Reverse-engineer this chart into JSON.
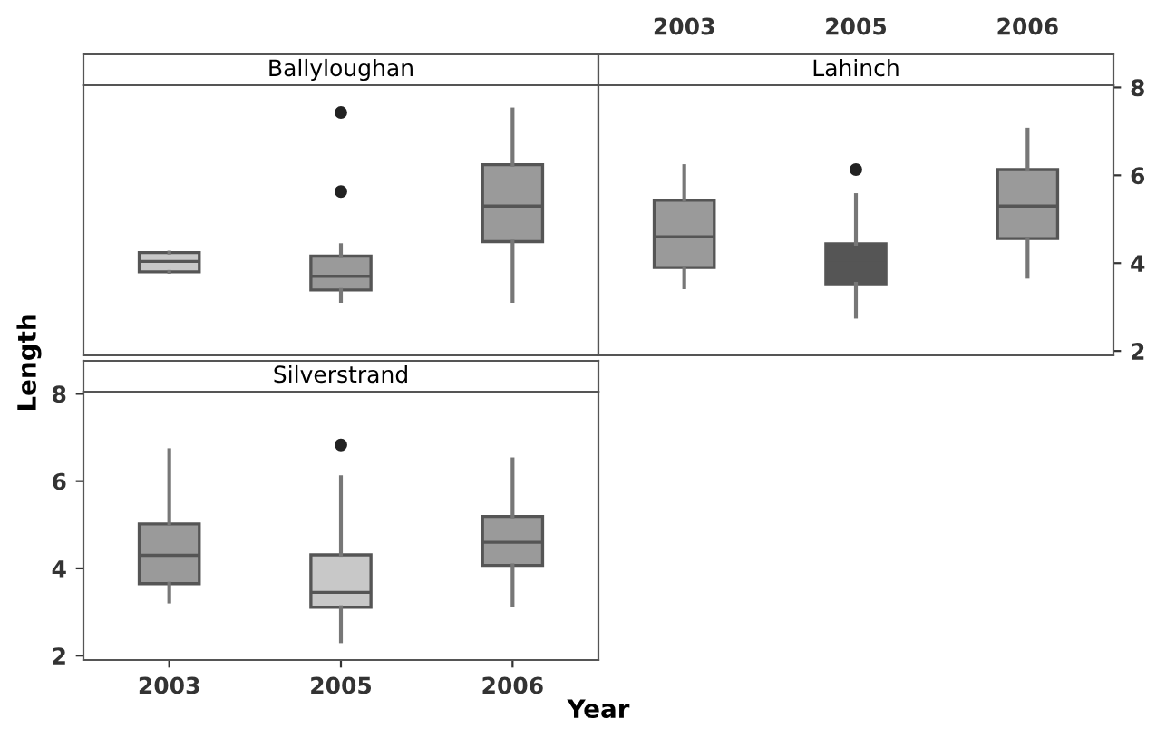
{
  "chart_data": [
    {
      "type": "box",
      "title": "Ballyloughan",
      "categories": [
        "2003",
        "2005",
        "2006"
      ],
      "ylim": [
        1.9,
        8.05
      ],
      "yticks": [
        2,
        4,
        6,
        8
      ],
      "tick_labels": false,
      "grid": false,
      "legend": false,
      "colors": [
        "#c8c8c8",
        "#9a9a9a",
        "#9a9a9a"
      ],
      "boxes": [
        {
          "low": 3.8,
          "q1": 3.8,
          "median": 4.04,
          "q3": 4.24,
          "high": 4.24
        },
        {
          "low": 3.14,
          "q1": 3.39,
          "median": 3.7,
          "q3": 4.16,
          "high": 4.41,
          "outliers": [
            5.63,
            7.43
          ]
        },
        {
          "low": 3.14,
          "q1": 4.49,
          "median": 5.3,
          "q3": 6.24,
          "high": 7.5
        }
      ]
    },
    {
      "type": "box",
      "title": "Lahinch",
      "categories": [
        "2003",
        "2005",
        "2006"
      ],
      "ylim": [
        1.9,
        8.05
      ],
      "yticks": [
        2,
        4,
        6,
        8
      ],
      "grid": false,
      "legend": false,
      "colors": [
        "#9a9a9a",
        "#555555",
        "#9a9a9a"
      ],
      "boxes": [
        {
          "low": 3.45,
          "q1": 3.9,
          "median": 4.6,
          "q3": 5.43,
          "high": 6.21
        },
        {
          "low": 2.78,
          "q1": 3.53,
          "median": 4.0,
          "q3": 4.44,
          "high": 5.55,
          "outliers": [
            6.13
          ]
        },
        {
          "low": 3.69,
          "q1": 4.56,
          "median": 5.3,
          "q3": 6.13,
          "high": 7.04
        }
      ]
    },
    {
      "type": "box",
      "title": "Silverstrand",
      "xlabel": "Year",
      "ylabel": "Length",
      "categories": [
        "2003",
        "2005",
        "2006"
      ],
      "ylim": [
        1.9,
        8.05
      ],
      "yticks": [
        2,
        4,
        6,
        8
      ],
      "grid": false,
      "legend": false,
      "colors": [
        "#9a9a9a",
        "#c8c8c8",
        "#9a9a9a"
      ],
      "boxes": [
        {
          "low": 3.24,
          "q1": 3.65,
          "median": 4.3,
          "q3": 5.02,
          "high": 6.71
        },
        {
          "low": 2.33,
          "q1": 3.11,
          "median": 3.45,
          "q3": 4.31,
          "high": 6.09,
          "outliers": [
            6.83
          ]
        },
        {
          "low": 3.16,
          "q1": 4.07,
          "median": 4.6,
          "q3": 5.19,
          "high": 6.5
        }
      ]
    }
  ]
}
